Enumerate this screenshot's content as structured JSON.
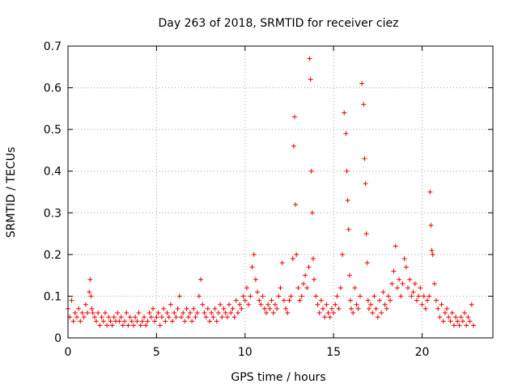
{
  "chart_data": {
    "type": "scatter",
    "title": "Day 263 of 2018, SRMTID for receiver ciez",
    "xlabel": "GPS time / hours",
    "ylabel": "SRMTID / TECUs",
    "xlim": [
      0,
      24
    ],
    "ylim": [
      0,
      0.7
    ],
    "xticks": [
      0,
      5,
      10,
      15,
      20
    ],
    "yticks": [
      0,
      0.1,
      0.2,
      0.3,
      0.4,
      0.5,
      0.6,
      0.7
    ],
    "xtick_labels": [
      "0",
      "5",
      "10",
      "15",
      "20"
    ],
    "ytick_labels": [
      "0",
      "0.1",
      "0.2",
      "0.3",
      "0.4",
      "0.5",
      "0.6",
      "0.7"
    ],
    "grid": true,
    "marker": "+",
    "marker_color": "#ee0000",
    "series": [
      {
        "name": "SRMTID",
        "x": [
          0.0,
          0.1,
          0.2,
          0.3,
          0.4,
          0.5,
          0.6,
          0.7,
          0.8,
          0.9,
          1.0,
          1.1,
          1.2,
          1.25,
          1.3,
          1.35,
          1.4,
          1.5,
          1.6,
          1.7,
          1.8,
          1.9,
          2.0,
          2.1,
          2.2,
          2.3,
          2.4,
          2.5,
          2.6,
          2.7,
          2.8,
          2.9,
          3.0,
          3.1,
          3.2,
          3.3,
          3.4,
          3.5,
          3.6,
          3.7,
          3.8,
          3.9,
          4.0,
          4.1,
          4.2,
          4.3,
          4.4,
          4.5,
          4.6,
          4.7,
          4.8,
          4.9,
          5.0,
          5.1,
          5.2,
          5.3,
          5.4,
          5.5,
          5.6,
          5.7,
          5.8,
          5.9,
          6.0,
          6.1,
          6.2,
          6.3,
          6.4,
          6.5,
          6.6,
          6.7,
          6.8,
          6.9,
          7.0,
          7.1,
          7.2,
          7.3,
          7.4,
          7.5,
          7.6,
          7.7,
          7.8,
          7.9,
          8.0,
          8.1,
          8.2,
          8.3,
          8.4,
          8.5,
          8.6,
          8.7,
          8.8,
          8.9,
          9.0,
          9.1,
          9.2,
          9.3,
          9.4,
          9.5,
          9.6,
          9.7,
          9.8,
          9.9,
          10.0,
          10.1,
          10.2,
          10.3,
          10.4,
          10.5,
          10.6,
          10.7,
          10.8,
          10.9,
          11.0,
          11.1,
          11.2,
          11.3,
          11.4,
          11.5,
          11.6,
          11.7,
          11.8,
          11.9,
          12.0,
          12.1,
          12.2,
          12.3,
          12.4,
          12.5,
          12.6,
          12.7,
          12.75,
          12.8,
          12.85,
          12.9,
          13.0,
          13.1,
          13.2,
          13.3,
          13.4,
          13.5,
          13.6,
          13.65,
          13.7,
          13.75,
          13.8,
          13.85,
          13.9,
          14.0,
          14.1,
          14.2,
          14.3,
          14.4,
          14.5,
          14.6,
          14.7,
          14.8,
          14.9,
          15.0,
          15.1,
          15.2,
          15.3,
          15.4,
          15.5,
          15.6,
          15.7,
          15.75,
          15.8,
          15.85,
          15.9,
          15.95,
          16.0,
          16.1,
          16.2,
          16.3,
          16.4,
          16.5,
          16.6,
          16.7,
          16.75,
          16.8,
          16.85,
          16.9,
          16.95,
          17.0,
          17.1,
          17.2,
          17.3,
          17.4,
          17.5,
          17.6,
          17.7,
          17.8,
          17.9,
          18.0,
          18.1,
          18.2,
          18.3,
          18.4,
          18.5,
          18.6,
          18.7,
          18.8,
          18.9,
          19.0,
          19.1,
          19.2,
          19.3,
          19.4,
          19.5,
          19.6,
          19.7,
          19.8,
          19.9,
          20.0,
          20.1,
          20.2,
          20.3,
          20.4,
          20.45,
          20.5,
          20.55,
          20.6,
          20.7,
          20.8,
          20.9,
          21.0,
          21.1,
          21.2,
          21.3,
          21.4,
          21.5,
          21.6,
          21.7,
          21.8,
          21.9,
          22.0,
          22.1,
          22.2,
          22.3,
          22.4,
          22.5,
          22.6,
          22.7,
          22.8,
          22.9
        ],
        "y": [
          0.07,
          0.05,
          0.09,
          0.04,
          0.06,
          0.05,
          0.07,
          0.04,
          0.06,
          0.05,
          0.08,
          0.06,
          0.11,
          0.14,
          0.1,
          0.07,
          0.06,
          0.05,
          0.04,
          0.06,
          0.03,
          0.05,
          0.04,
          0.06,
          0.03,
          0.05,
          0.04,
          0.03,
          0.05,
          0.04,
          0.06,
          0.04,
          0.05,
          0.03,
          0.04,
          0.06,
          0.03,
          0.05,
          0.04,
          0.03,
          0.05,
          0.04,
          0.06,
          0.03,
          0.04,
          0.05,
          0.03,
          0.04,
          0.06,
          0.05,
          0.07,
          0.04,
          0.05,
          0.06,
          0.03,
          0.05,
          0.07,
          0.04,
          0.06,
          0.05,
          0.08,
          0.04,
          0.06,
          0.05,
          0.07,
          0.1,
          0.05,
          0.06,
          0.04,
          0.07,
          0.05,
          0.06,
          0.04,
          0.07,
          0.05,
          0.06,
          0.1,
          0.14,
          0.08,
          0.06,
          0.05,
          0.07,
          0.04,
          0.06,
          0.05,
          0.07,
          0.04,
          0.06,
          0.08,
          0.05,
          0.07,
          0.06,
          0.05,
          0.08,
          0.06,
          0.07,
          0.05,
          0.09,
          0.06,
          0.08,
          0.07,
          0.1,
          0.09,
          0.12,
          0.08,
          0.1,
          0.17,
          0.2,
          0.14,
          0.11,
          0.09,
          0.08,
          0.1,
          0.07,
          0.06,
          0.08,
          0.07,
          0.09,
          0.06,
          0.08,
          0.07,
          0.1,
          0.12,
          0.18,
          0.09,
          0.07,
          0.06,
          0.09,
          0.1,
          0.19,
          0.46,
          0.53,
          0.32,
          0.2,
          0.12,
          0.09,
          0.1,
          0.13,
          0.15,
          0.12,
          0.17,
          0.67,
          0.62,
          0.4,
          0.3,
          0.19,
          0.14,
          0.1,
          0.08,
          0.06,
          0.09,
          0.07,
          0.05,
          0.08,
          0.06,
          0.05,
          0.07,
          0.06,
          0.08,
          0.1,
          0.07,
          0.12,
          0.2,
          0.54,
          0.49,
          0.4,
          0.33,
          0.26,
          0.15,
          0.09,
          0.07,
          0.06,
          0.12,
          0.08,
          0.07,
          0.1,
          0.61,
          0.56,
          0.43,
          0.37,
          0.25,
          0.18,
          0.09,
          0.07,
          0.08,
          0.06,
          0.1,
          0.07,
          0.05,
          0.09,
          0.06,
          0.11,
          0.08,
          0.07,
          0.1,
          0.09,
          0.13,
          0.16,
          0.22,
          0.12,
          0.14,
          0.1,
          0.13,
          0.19,
          0.17,
          0.12,
          0.14,
          0.1,
          0.11,
          0.13,
          0.09,
          0.1,
          0.12,
          0.08,
          0.1,
          0.07,
          0.09,
          0.1,
          0.35,
          0.27,
          0.21,
          0.2,
          0.13,
          0.09,
          0.07,
          0.05,
          0.08,
          0.04,
          0.06,
          0.07,
          0.05,
          0.04,
          0.06,
          0.03,
          0.05,
          0.04,
          0.03,
          0.05,
          0.04,
          0.06,
          0.03,
          0.05,
          0.04,
          0.08,
          0.03
        ]
      }
    ]
  }
}
